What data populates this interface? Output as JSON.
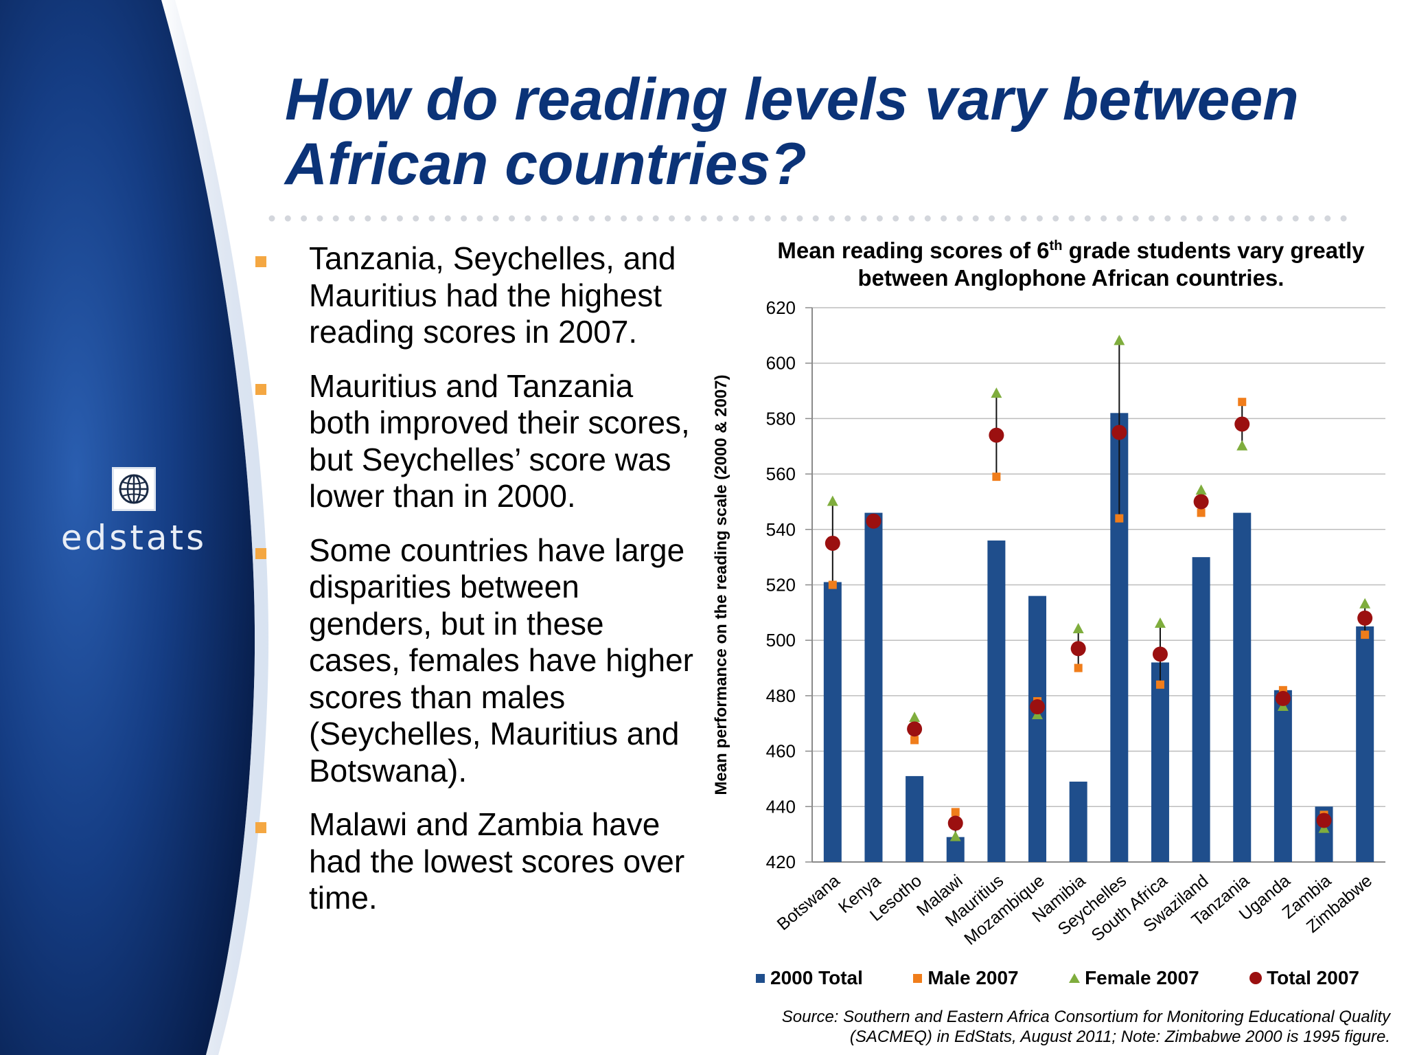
{
  "slide": {
    "title": "How do reading levels vary between African countries?",
    "logo_text": "edstats",
    "bullets": [
      "Tanzania, Seychelles, and Mauritius had the highest reading scores in 2007.",
      "Mauritius and Tanzania both improved their scores, but Seychelles’ score was lower than in 2000.",
      "Some countries have large disparities between genders, but in these cases, females have higher scores than males (Seychelles, Mauritius and Botswana).",
      "Malawi and Zambia have had the lowest scores over time."
    ],
    "source": "Source: Southern and Eastern Africa Consortium for Monitoring Educational Quality (SACMEQ) in EdStats, August 2011; Note: Zimbabwe 2000 is 1995 figure.",
    "colors": {
      "title": "#0b3378",
      "panel_dark": "#0b2a62",
      "bullet": "#f4a742"
    }
  },
  "chart_data": {
    "type": "bar",
    "title_main": "Mean reading scores of 6",
    "title_sup": "th",
    "title_rest": " grade students vary greatly between Anglophone African countries.",
    "ylabel": "Mean performance on the reading scale (2000 & 2007)",
    "xlabel": "",
    "ylim": [
      420,
      620
    ],
    "yticks": [
      420,
      440,
      460,
      480,
      500,
      520,
      540,
      560,
      580,
      600,
      620
    ],
    "grid": true,
    "legend_position": "bottom",
    "categories": [
      "Botswana",
      "Kenya",
      "Lesotho",
      "Malawi",
      "Mauritius",
      "Mozambique",
      "Namibia",
      "Seychelles",
      "South Africa",
      "Swaziland",
      "Tanzania",
      "Uganda",
      "Zambia",
      "Zimbabwe"
    ],
    "series": [
      {
        "name": "2000 Total",
        "kind": "bar",
        "color": "#1f4e8c",
        "values": [
          521,
          546,
          451,
          429,
          536,
          516,
          449,
          582,
          492,
          530,
          546,
          482,
          440,
          505
        ]
      },
      {
        "name": "Male 2007",
        "kind": "square",
        "color": "#f07d1b",
        "values": [
          520,
          543,
          464,
          438,
          559,
          478,
          490,
          544,
          484,
          546,
          586,
          482,
          437,
          502
        ]
      },
      {
        "name": "Female 2007",
        "kind": "triangle",
        "color": "#7fad3d",
        "values": [
          550,
          543,
          472,
          429,
          589,
          473,
          504,
          608,
          506,
          554,
          570,
          476,
          432,
          513
        ]
      },
      {
        "name": "Total 2007",
        "kind": "circle",
        "color": "#9b1010",
        "values": [
          535,
          543,
          468,
          434,
          574,
          476,
          497,
          575,
          495,
          550,
          578,
          479,
          435,
          508
        ]
      }
    ]
  }
}
